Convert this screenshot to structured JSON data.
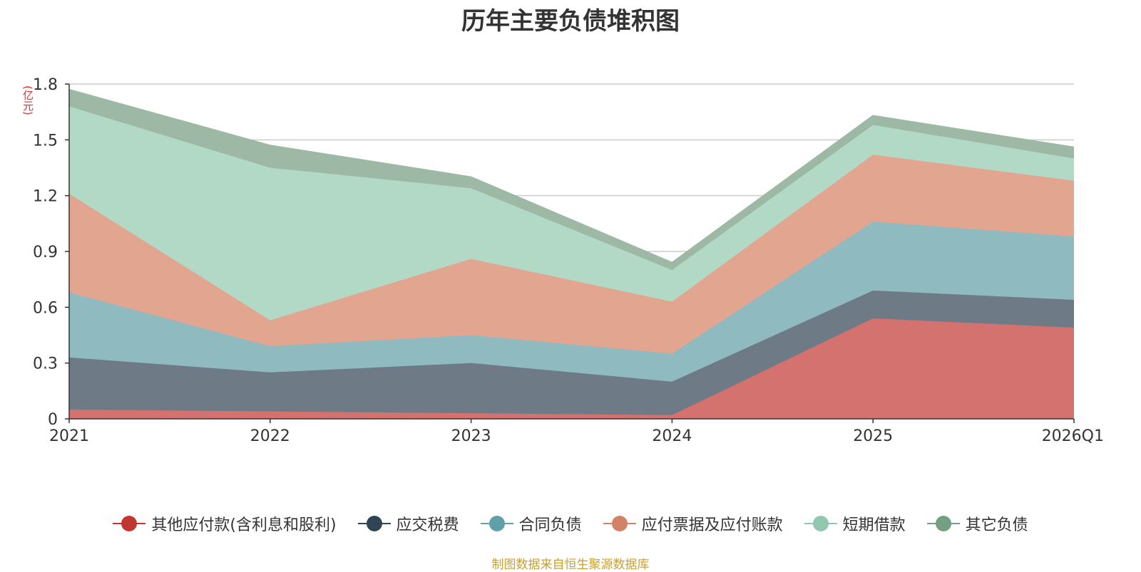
{
  "chart_data": {
    "type": "area",
    "stacked": true,
    "title": "历年主要负债堆积图",
    "unit": "(亿元)",
    "categories": [
      "2021",
      "2022",
      "2023",
      "2024",
      "2025",
      "2026Q1"
    ],
    "y_ticks": [
      "0",
      "0.3",
      "0.6",
      "0.9",
      "1.2",
      "1.5",
      "1.8"
    ],
    "ylim": [
      0,
      1.8
    ],
    "grid": true,
    "legend_position": "bottom",
    "series": [
      {
        "name": "其他应付款(含利息和股利)",
        "color": "#c23531",
        "fill": "#d47270",
        "values": [
          0.05,
          0.04,
          0.03,
          0.02,
          0.54,
          0.49
        ]
      },
      {
        "name": "应交税费",
        "color": "#2f4554",
        "fill": "#6e7b87",
        "values": [
          0.28,
          0.21,
          0.27,
          0.18,
          0.15,
          0.15
        ]
      },
      {
        "name": "合同负债",
        "color": "#61a0a8",
        "fill": "#8fbac0",
        "values": [
          0.35,
          0.14,
          0.15,
          0.15,
          0.37,
          0.34
        ]
      },
      {
        "name": "应付票据及应付账款",
        "color": "#d48265",
        "fill": "#e1a590",
        "values": [
          0.53,
          0.14,
          0.41,
          0.28,
          0.36,
          0.3
        ]
      },
      {
        "name": "短期借款",
        "color": "#91c7ae",
        "fill": "#b1d9c6",
        "values": [
          0.47,
          0.82,
          0.38,
          0.17,
          0.16,
          0.12
        ]
      },
      {
        "name": "其它负债",
        "color": "#749f83",
        "fill": "#9db9a6",
        "values": [
          0.09,
          0.12,
          0.06,
          0.04,
          0.05,
          0.06
        ]
      }
    ]
  },
  "source_note": "制图数据来自恒生聚源数据库"
}
